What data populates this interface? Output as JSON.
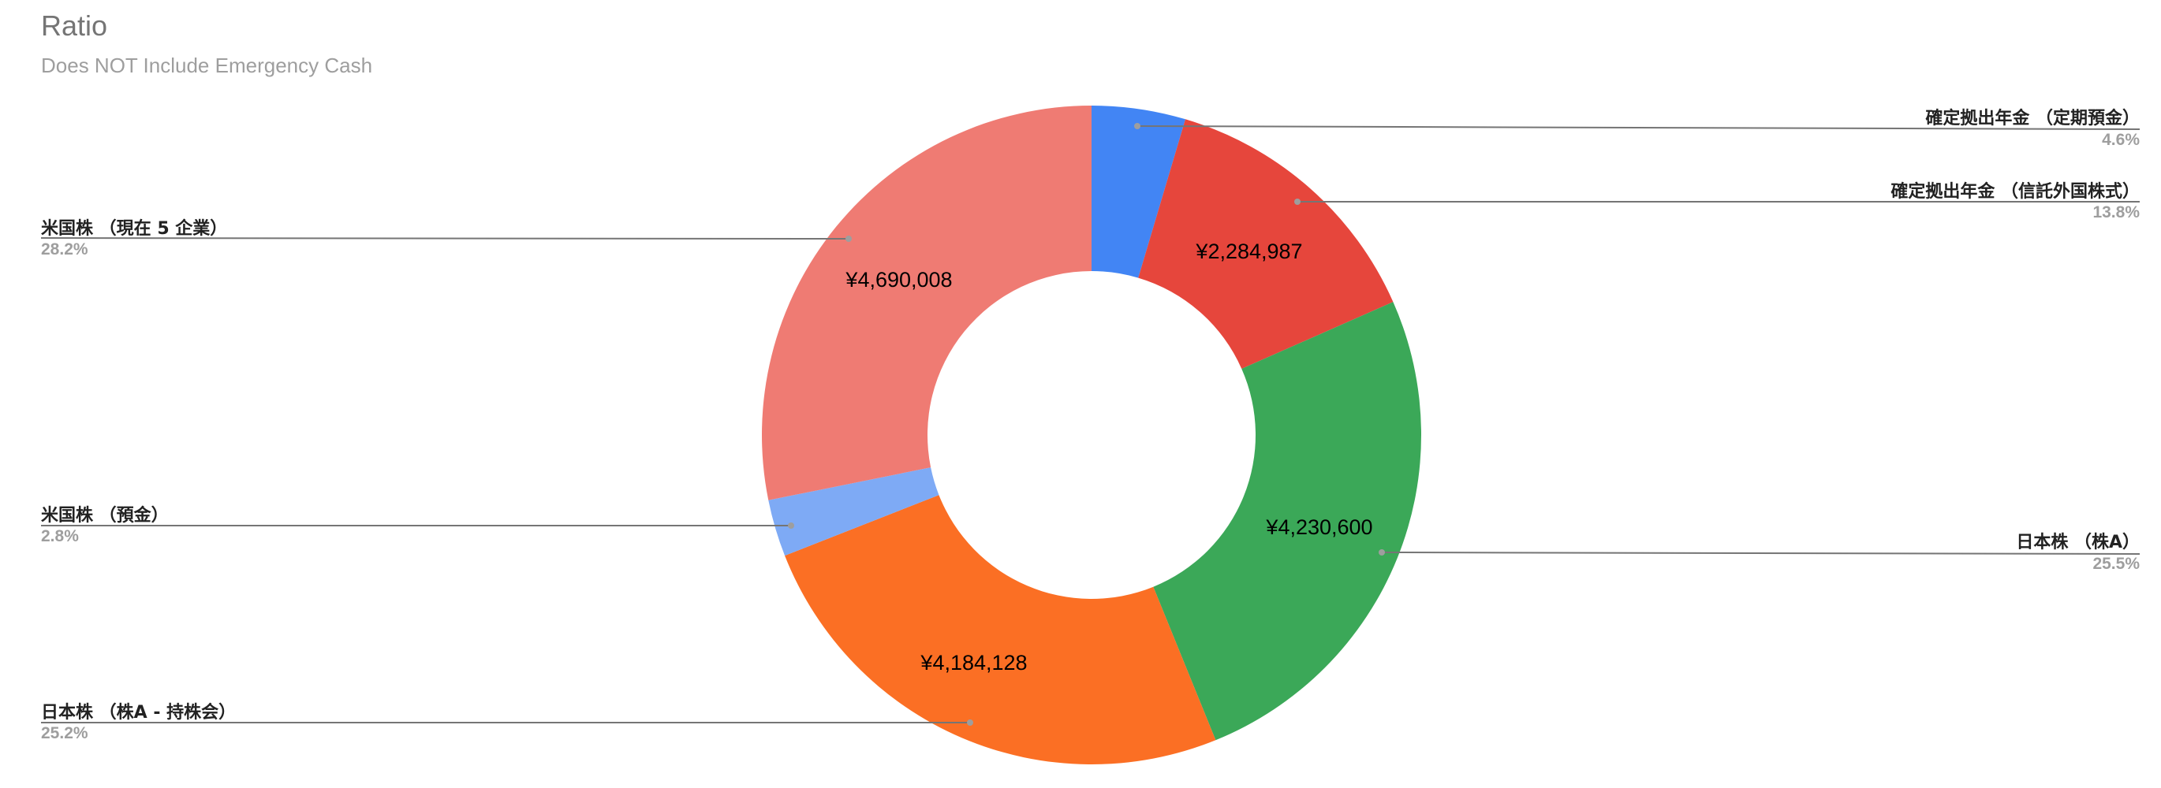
{
  "chart_data": {
    "type": "pie",
    "variant": "donut",
    "title": "Ratio",
    "subtitle": "Does NOT Include Emergency Cash",
    "currency": "¥",
    "slices": [
      {
        "label": "確定拠出年金 （定期預金）",
        "percent": 4.6,
        "value_label": "",
        "color": "#4285f4"
      },
      {
        "label": "確定拠出年金 （信託外国株式）",
        "percent": 13.8,
        "value": 2284987,
        "value_label": "¥2,284,987",
        "color": "#e6463c"
      },
      {
        "label": "日本株 （株A）",
        "percent": 25.5,
        "value": 4230600,
        "value_label": "¥4,230,600",
        "color": "#3ba858"
      },
      {
        "label": "日本株 （株A - 持株会）",
        "percent": 25.2,
        "value": 4184128,
        "value_label": "¥4,184,128",
        "color": "#fb6f24"
      },
      {
        "label": "米国株 （預金）",
        "percent": 2.8,
        "value_label": "",
        "color": "#7eaaf5"
      },
      {
        "label": "米国株 （現在 5 企業）",
        "percent": 28.2,
        "value": 4690008,
        "value_label": "¥4,690,008",
        "color": "#ef7b73"
      }
    ],
    "legend_position": "labeled (callout lines)"
  },
  "header": {
    "title": "Ratio",
    "subtitle": "Does NOT Include Emergency Cash"
  },
  "labels": {
    "teiki_name": "確定拠出年金 （定期預金）",
    "teiki_pct": "4.6%",
    "shintaku_name": "確定拠出年金 （信託外国株式）",
    "shintaku_pct": "13.8%",
    "shintaku_value": "¥2,284,987",
    "kabuA_name": "日本株 （株A）",
    "kabuA_pct": "25.5%",
    "kabuA_value": "¥4,230,600",
    "mochikabu_name": "日本株 （株A - 持株会）",
    "mochikabu_pct": "25.2%",
    "mochikabu_value": "¥4,184,128",
    "yokin_name": "米国株 （預金）",
    "yokin_pct": "2.8%",
    "us5_name": "米国株 （現在 5 企業）",
    "us5_pct": "28.2%",
    "us5_value": "¥4,690,008"
  }
}
